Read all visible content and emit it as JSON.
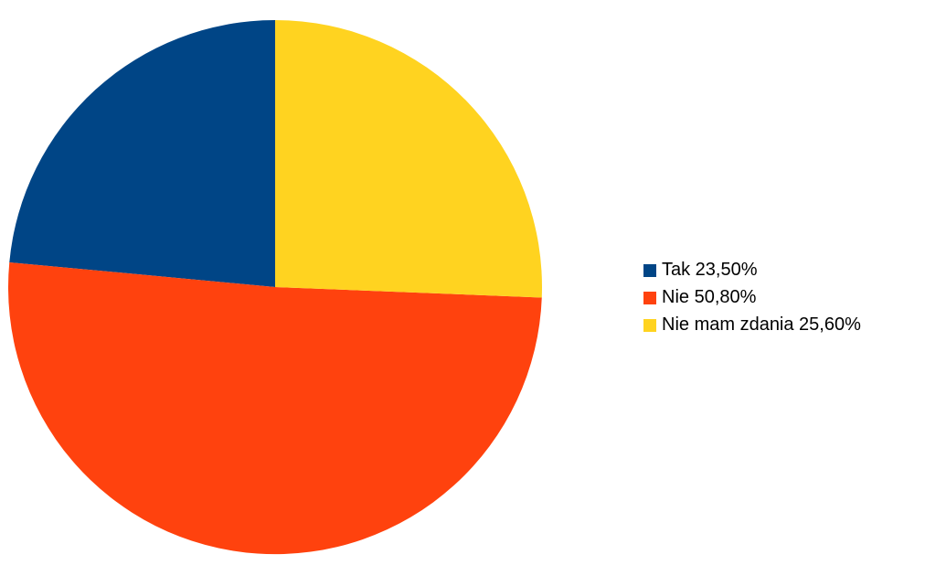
{
  "chart_data": {
    "type": "pie",
    "categories": [
      "Tak",
      "Nie",
      "Nie mam zdania"
    ],
    "values": [
      23.5,
      50.8,
      25.6
    ],
    "colors": [
      "#004586",
      "#ff420e",
      "#ffd320"
    ],
    "legend_labels": [
      "Tak 23,50%",
      "Nie 50,80%",
      "Nie mam zdania 25,60%"
    ],
    "legend_position": "right",
    "start_angle": "12 o'clock",
    "direction": "counterclockwise"
  }
}
